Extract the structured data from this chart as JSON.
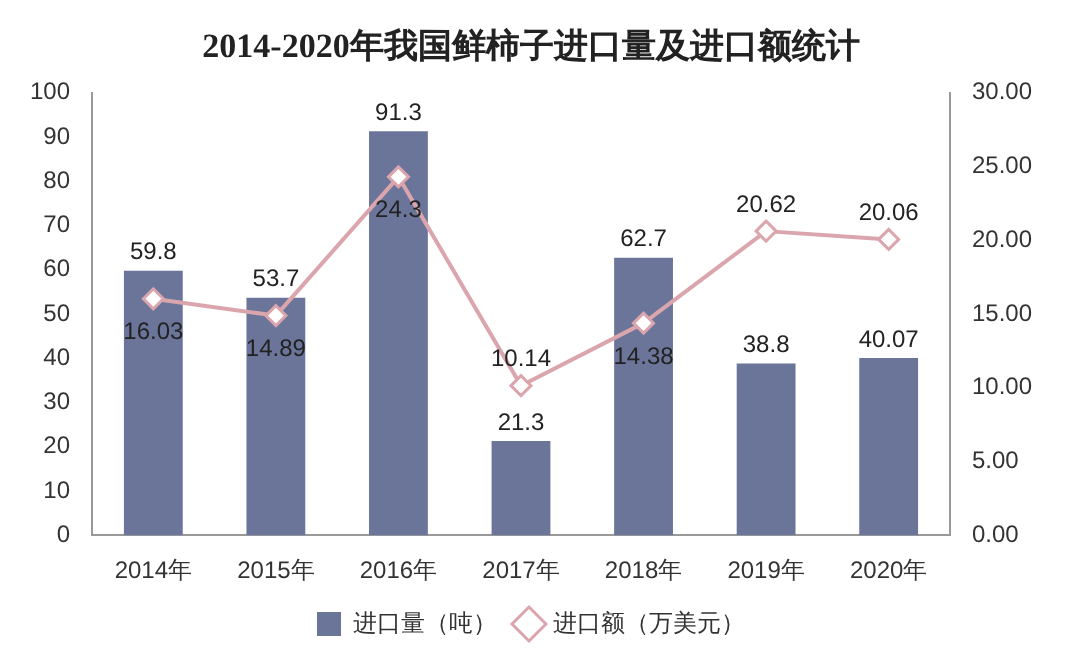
{
  "chart_data": {
    "type": "bar",
    "title": "2014-2020年我国鲜柿子进口量及进口额统计",
    "categories": [
      "2014年",
      "2015年",
      "2016年",
      "2017年",
      "2018年",
      "2019年",
      "2020年"
    ],
    "series": [
      {
        "name": "进口量（吨）",
        "color": "#6b7599",
        "values": [
          59.8,
          53.7,
          91.3,
          21.3,
          62.7,
          38.8,
          40.07
        ]
      },
      {
        "name": "进口额（万美元）",
        "type": "line",
        "axis": "y2",
        "color": "#dba5ad",
        "marker": "diamond",
        "values": [
          16.03,
          14.89,
          24.3,
          10.14,
          14.38,
          20.62,
          20.06
        ]
      }
    ],
    "ylim": [
      0,
      100
    ],
    "yticks": [
      0,
      10,
      20,
      30,
      40,
      50,
      60,
      70,
      80,
      90,
      100
    ],
    "y2lim": [
      0,
      30
    ],
    "y2ticks": [
      {
        "value": 0,
        "label": "0.00"
      },
      {
        "value": 5,
        "label": "5.00"
      },
      {
        "value": 10,
        "label": "10.00"
      },
      {
        "value": 15,
        "label": "15.00"
      },
      {
        "value": 20,
        "label": "20.00"
      },
      {
        "value": 25,
        "label": "25.00"
      },
      {
        "value": 30,
        "label": "30.00"
      }
    ],
    "data_labels": true,
    "grid": false,
    "legend": "bottom"
  }
}
